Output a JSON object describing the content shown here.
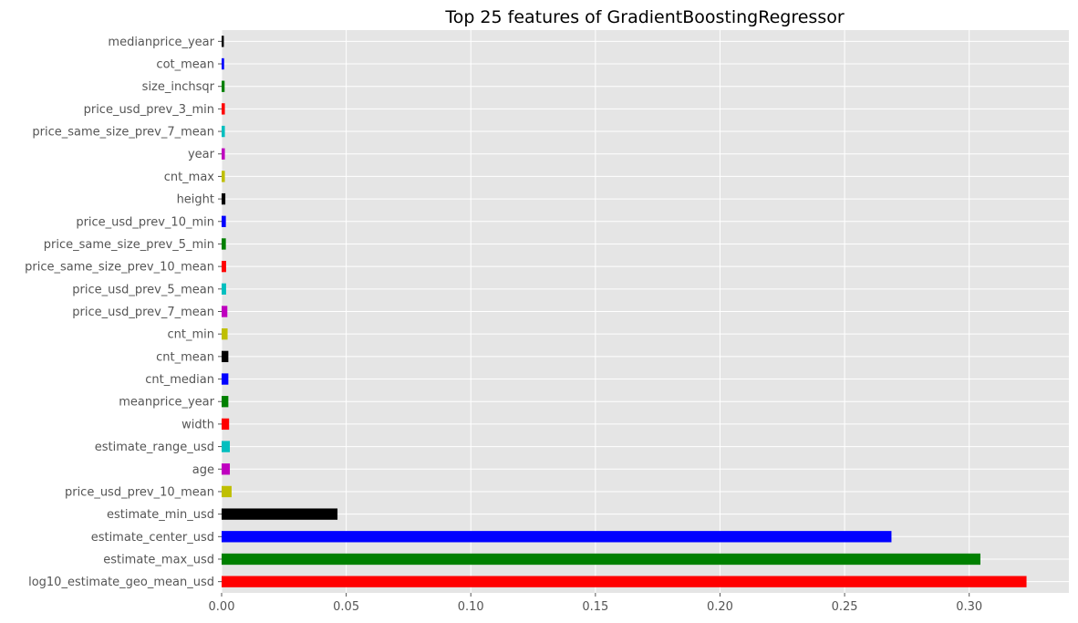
{
  "chart_data": {
    "type": "bar",
    "orientation": "horizontal",
    "title": "Top 25 features of GradientBoostingRegressor",
    "xlabel": "",
    "ylabel": "",
    "xlim": [
      0,
      0.34
    ],
    "xticks": [
      0.0,
      0.05,
      0.1,
      0.15,
      0.2,
      0.25,
      0.3
    ],
    "xtick_labels": [
      "0.00",
      "0.05",
      "0.10",
      "0.15",
      "0.20",
      "0.25",
      "0.30"
    ],
    "grid": true,
    "style": "ggplot",
    "background_color": "#e5e5e5",
    "grid_color": "#ffffff",
    "categories": [
      "log10_estimate_geo_mean_usd",
      "estimate_max_usd",
      "estimate_center_usd",
      "estimate_min_usd",
      "price_usd_prev_10_mean",
      "age",
      "estimate_range_usd",
      "width",
      "meanprice_year",
      "cnt_median",
      "cnt_mean",
      "cnt_min",
      "price_usd_prev_7_mean",
      "price_usd_prev_5_mean",
      "price_same_size_prev_10_mean",
      "price_same_size_prev_5_min",
      "price_usd_prev_10_min",
      "height",
      "cnt_max",
      "year",
      "price_same_size_prev_7_mean",
      "price_usd_prev_3_min",
      "size_inchsqr",
      "cot_mean",
      "medianprice_year"
    ],
    "values": [
      0.323,
      0.3045,
      0.2688,
      0.0465,
      0.004,
      0.0033,
      0.0033,
      0.003,
      0.0027,
      0.0027,
      0.0027,
      0.0024,
      0.0023,
      0.0018,
      0.0018,
      0.0017,
      0.0017,
      0.0015,
      0.0013,
      0.0013,
      0.0013,
      0.0013,
      0.0012,
      0.001,
      0.0009
    ],
    "colors": [
      "#ff0000",
      "#008000",
      "#0000ff",
      "#000000",
      "#bfbf00",
      "#bf00bf",
      "#00bfbf",
      "#ff0000",
      "#008000",
      "#0000ff",
      "#000000",
      "#bfbf00",
      "#bf00bf",
      "#00bfbf",
      "#ff0000",
      "#008000",
      "#0000ff",
      "#000000",
      "#bfbf00",
      "#bf00bf",
      "#00bfbf",
      "#ff0000",
      "#008000",
      "#0000ff",
      "#000000"
    ]
  }
}
